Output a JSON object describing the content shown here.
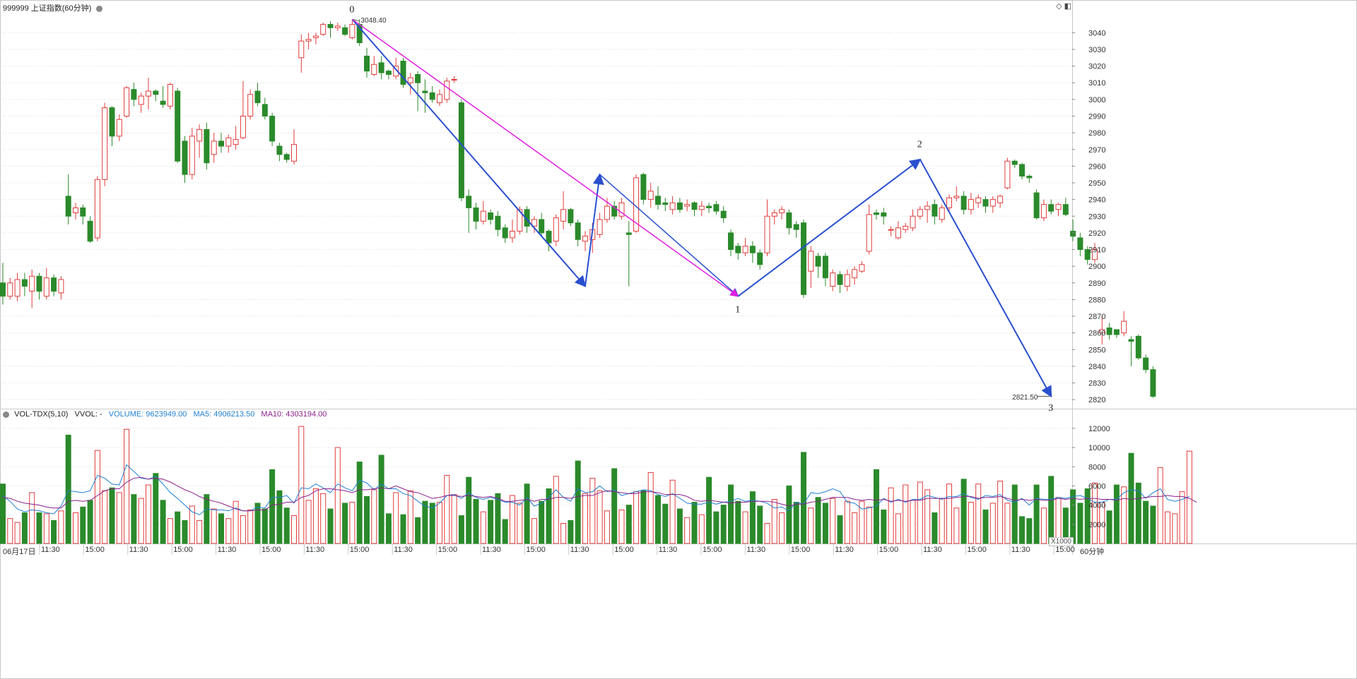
{
  "header": {
    "symbol_title": "999999 上证指数(60分钟)",
    "period_label": "60分钟",
    "volume_unit": "X1000",
    "date_label": "06月17日"
  },
  "volume_legend": {
    "indicator": "VOL-TDX(5,10)",
    "vvol": "VVOL: -",
    "volume": "VOLUME: 9623949.00",
    "ma5": "MA5: 4906213.50",
    "ma10": "MA10: 4303194.00"
  },
  "colors": {
    "up": "#e23b3b",
    "down": "#2a8a2a",
    "wave_arrow": "#2a4fcf",
    "trend_line": "#e020e0",
    "ma5": "#1f7fd0",
    "ma10": "#8a1f8a",
    "grid": "#d8d8d8"
  },
  "chart_data": {
    "type": "candlestick",
    "price_axis": {
      "ticks": [
        2820,
        2830,
        2840,
        2850,
        2860,
        2870,
        2880,
        2890,
        2900,
        2910,
        2920,
        2930,
        2940,
        2950,
        2960,
        2970,
        2980,
        2990,
        3000,
        3010,
        3020,
        3030,
        3040
      ],
      "range": [
        2815,
        3052
      ]
    },
    "volume_axis": {
      "ticks": [
        2000,
        4000,
        6000,
        8000,
        10000,
        12000
      ],
      "range": [
        0,
        12800
      ],
      "unit": "X1000"
    },
    "time_labels": [
      "11:30",
      "15:00",
      "11:30",
      "15:00",
      "11:30",
      "15:00",
      "11:30",
      "15:00",
      "11:30",
      "15:00",
      "11:30",
      "15:00",
      "11:30",
      "15:00",
      "11:30",
      "15:00",
      "11:30",
      "15:00",
      "11:30",
      "15:00",
      "11:30",
      "15:00",
      "11:30",
      "15:00"
    ],
    "annotations": {
      "high_value": "3048.40",
      "low_value": "2821.50",
      "wave_labels": [
        "0",
        "1",
        "2",
        "3"
      ]
    },
    "candles": [
      [
        2890,
        2882,
        2902,
        2877
      ],
      [
        2882,
        2890,
        2893,
        2880
      ],
      [
        2882,
        2892,
        2896,
        2879
      ],
      [
        2892,
        2888,
        2896,
        2882
      ],
      [
        2885,
        2894,
        2898,
        2875
      ],
      [
        2894,
        2885,
        2896,
        2880
      ],
      [
        2882,
        2893,
        2899,
        2880
      ],
      [
        2893,
        2885,
        2895,
        2882
      ],
      [
        2884,
        2892,
        2894,
        2880
      ],
      [
        2942,
        2930,
        2955,
        2925
      ],
      [
        2932,
        2935,
        2938,
        2928
      ],
      [
        2935,
        2930,
        2937,
        2925
      ],
      [
        2927,
        2915,
        2930,
        2914
      ],
      [
        2917,
        2952,
        2954,
        2915
      ],
      [
        2952,
        2995,
        2998,
        2948
      ],
      [
        2995,
        2978,
        2996,
        2972
      ],
      [
        2978,
        2988,
        2991,
        2975
      ],
      [
        2990,
        3007,
        3008,
        2989
      ],
      [
        3006,
        3000,
        3010,
        2996
      ],
      [
        2997,
        3002,
        3004,
        2992
      ],
      [
        3002,
        3005,
        3013,
        2994
      ],
      [
        3005,
        3003,
        3006,
        2999
      ],
      [
        2999,
        2997,
        3008,
        2995
      ],
      [
        2996,
        3009,
        3010,
        2994
      ],
      [
        3005,
        2963,
        3007,
        2962
      ],
      [
        2975,
        2955,
        2978,
        2950
      ],
      [
        2955,
        2978,
        2983,
        2952
      ],
      [
        2975,
        2982,
        2985,
        2965
      ],
      [
        2982,
        2962,
        2986,
        2958
      ],
      [
        2967,
        2975,
        2980,
        2962
      ],
      [
        2975,
        2972,
        2980,
        2968
      ],
      [
        2972,
        2977,
        2979,
        2968
      ],
      [
        2973,
        2976,
        2984,
        2970
      ],
      [
        2977,
        2990,
        3011,
        2976
      ],
      [
        2990,
        3003,
        3006,
        2988
      ],
      [
        3005,
        2998,
        3010,
        2996
      ],
      [
        2997,
        2990,
        3001,
        2988
      ],
      [
        2990,
        2975,
        2992,
        2972
      ],
      [
        2972,
        2967,
        2974,
        2963
      ],
      [
        2967,
        2964,
        2968,
        2962
      ],
      [
        2963,
        2973,
        2982,
        2961
      ],
      [
        3025,
        3035,
        3039,
        3016
      ],
      [
        3035,
        3036,
        3040,
        3030
      ],
      [
        3037,
        3038,
        3040,
        3033
      ],
      [
        3039,
        3045,
        3046,
        3038
      ],
      [
        3045,
        3043,
        3047,
        3037
      ],
      [
        3043,
        3044,
        3046,
        3041
      ],
      [
        3043,
        3039,
        3045,
        3038
      ],
      [
        3037,
        3045,
        3048,
        3036
      ],
      [
        3045,
        3034,
        3048,
        3032
      ],
      [
        3026,
        3017,
        3031,
        3013
      ],
      [
        3015,
        3021,
        3026,
        3014
      ],
      [
        3022,
        3016,
        3026,
        3012
      ],
      [
        3017,
        3015,
        3018,
        3012
      ],
      [
        3014,
        3020,
        3025,
        3012
      ],
      [
        3023,
        3009,
        3025,
        3007
      ],
      [
        3010,
        3013,
        3016,
        3003
      ],
      [
        3015,
        3010,
        3017,
        2993
      ],
      [
        3005,
        3004,
        3012,
        2992
      ],
      [
        3004,
        3000,
        3008,
        2998
      ],
      [
        2998,
        3003,
        3006,
        2996
      ],
      [
        3000,
        3011,
        3013,
        2998
      ],
      [
        3012,
        3012,
        3014,
        3010
      ],
      [
        2998,
        2941,
        3000,
        2939
      ],
      [
        2942,
        2935,
        2946,
        2920
      ],
      [
        2935,
        2927,
        2938,
        2922
      ],
      [
        2927,
        2933,
        2939,
        2925
      ],
      [
        2932,
        2928,
        2934,
        2925
      ],
      [
        2930,
        2922,
        2933,
        2918
      ],
      [
        2923,
        2917,
        2925,
        2914
      ],
      [
        2917,
        2921,
        2928,
        2914
      ],
      [
        2921,
        2934,
        2936,
        2919
      ],
      [
        2934,
        2924,
        2936,
        2920
      ],
      [
        2924,
        2928,
        2930,
        2920
      ],
      [
        2928,
        2920,
        2932,
        2918
      ],
      [
        2921,
        2914,
        2922,
        2909
      ],
      [
        2915,
        2929,
        2931,
        2912
      ],
      [
        2927,
        2934,
        2945,
        2922
      ],
      [
        2934,
        2926,
        2935,
        2924
      ],
      [
        2926,
        2916,
        2928,
        2912
      ],
      [
        2915,
        2918,
        2921,
        2909
      ],
      [
        2916,
        2922,
        2926,
        2908
      ],
      [
        2919,
        2928,
        2932,
        2917
      ],
      [
        2928,
        2936,
        2941,
        2926
      ],
      [
        2936,
        2930,
        2939,
        2928
      ],
      [
        2930,
        2938,
        2941,
        2928
      ],
      [
        2920,
        2919,
        2927,
        2888
      ],
      [
        2921,
        2953,
        2955,
        2920
      ],
      [
        2955,
        2940,
        2956,
        2937
      ],
      [
        2940,
        2945,
        2950,
        2935
      ],
      [
        2942,
        2937,
        2948,
        2934
      ],
      [
        2938,
        2937,
        2941,
        2933
      ],
      [
        2934,
        2938,
        2942,
        2931
      ],
      [
        2938,
        2934,
        2941,
        2932
      ],
      [
        2936,
        2937,
        2940,
        2933
      ],
      [
        2938,
        2934,
        2939,
        2930
      ],
      [
        2934,
        2936,
        2939,
        2930
      ],
      [
        2936,
        2935,
        2938,
        2932
      ],
      [
        2937,
        2933,
        2939,
        2931
      ],
      [
        2933,
        2929,
        2936,
        2926
      ],
      [
        2920,
        2910,
        2922,
        2906
      ],
      [
        2912,
        2908,
        2914,
        2904
      ],
      [
        2908,
        2912,
        2917,
        2906
      ],
      [
        2912,
        2908,
        2915,
        2902
      ],
      [
        2908,
        2901,
        2910,
        2898
      ],
      [
        2908,
        2930,
        2940,
        2906
      ],
      [
        2930,
        2932,
        2934,
        2925
      ],
      [
        2932,
        2934,
        2936,
        2928
      ],
      [
        2932,
        2923,
        2934,
        2919
      ],
      [
        2925,
        2922,
        2927,
        2917
      ],
      [
        2926,
        2883,
        2928,
        2881
      ],
      [
        2897,
        2909,
        2912,
        2887
      ],
      [
        2906,
        2900,
        2908,
        2893
      ],
      [
        2906,
        2893,
        2908,
        2888
      ],
      [
        2888,
        2896,
        2898,
        2885
      ],
      [
        2895,
        2889,
        2897,
        2884
      ],
      [
        2888,
        2895,
        2898,
        2885
      ],
      [
        2893,
        2898,
        2900,
        2889
      ],
      [
        2897,
        2901,
        2903,
        2896
      ],
      [
        2909,
        2931,
        2937,
        2907
      ],
      [
        2932,
        2931,
        2934,
        2928
      ],
      [
        2932,
        2930,
        2935,
        2925
      ],
      [
        2922,
        2922,
        2924,
        2918
      ],
      [
        2917,
        2923,
        2927,
        2916
      ],
      [
        2922,
        2924,
        2926,
        2920
      ],
      [
        2923,
        2930,
        2934,
        2921
      ],
      [
        2930,
        2934,
        2936,
        2928
      ],
      [
        2934,
        2936,
        2939,
        2926
      ],
      [
        2937,
        2930,
        2940,
        2925
      ],
      [
        2928,
        2935,
        2937,
        2926
      ],
      [
        2935,
        2941,
        2943,
        2932
      ],
      [
        2941,
        2942,
        2948,
        2939
      ],
      [
        2942,
        2934,
        2945,
        2931
      ],
      [
        2934,
        2940,
        2944,
        2931
      ],
      [
        2938,
        2941,
        2943,
        2935
      ],
      [
        2940,
        2936,
        2942,
        2932
      ],
      [
        2936,
        2940,
        2942,
        2932
      ],
      [
        2938,
        2942,
        2943,
        2935
      ],
      [
        2947,
        2963,
        2965,
        2946
      ],
      [
        2963,
        2961,
        2964,
        2959
      ],
      [
        2961,
        2954,
        2962,
        2952
      ],
      [
        2954,
        2953,
        2955,
        2950
      ],
      [
        2944,
        2929,
        2946,
        2928
      ],
      [
        2929,
        2937,
        2940,
        2927
      ],
      [
        2937,
        2933,
        2940,
        2931
      ],
      [
        2934,
        2937,
        2938,
        2930
      ],
      [
        2937,
        2931,
        2941,
        2930
      ],
      [
        2921,
        2918,
        2928,
        2915
      ],
      [
        2917,
        2910,
        2920,
        2906
      ],
      [
        2910,
        2904,
        2912,
        2901
      ],
      [
        2904,
        2910,
        2914,
        2902
      ],
      [
        2860,
        2862,
        2870,
        2853
      ],
      [
        2863,
        2859,
        2866,
        2856
      ],
      [
        2862,
        2859,
        2862,
        2857
      ],
      [
        2860,
        2867,
        2873,
        2858
      ],
      [
        2856,
        2855,
        2858,
        2840
      ],
      [
        2858,
        2845,
        2859,
        2844
      ],
      [
        2845,
        2838,
        2847,
        2836
      ],
      [
        2838,
        2822,
        2840,
        2821
      ]
    ],
    "volumes": [
      6200,
      2600,
      2200,
      3200,
      5300,
      3200,
      3100,
      2400,
      3400,
      11300,
      3200,
      3800,
      4500,
      9700,
      5500,
      5800,
      5300,
      11900,
      5100,
      4700,
      6100,
      7300,
      4500,
      2600,
      3300,
      2400,
      3900,
      2400,
      5100,
      3600,
      3100,
      2600,
      4400,
      2900,
      3500,
      4200,
      3600,
      7700,
      5500,
      3700,
      2900,
      12200,
      4500,
      5700,
      5200,
      3600,
      10000,
      4200,
      4300,
      8500,
      4900,
      5600,
      9200,
      3100,
      5300,
      3000,
      5500,
      2700,
      4400,
      4200,
      4300,
      7100,
      5100,
      2900,
      6900,
      4600,
      3300,
      4500,
      5200,
      2500,
      5000,
      4200,
      6200,
      2600,
      4400,
      5700,
      7000,
      2100,
      2400,
      8600,
      5200,
      6800,
      5500,
      3400,
      7800,
      3500,
      4000,
      5400,
      5500,
      7400,
      5000,
      4100,
      6600,
      3600,
      2700,
      4300,
      3000,
      6900,
      3300,
      4000,
      6100,
      4400,
      3300,
      5400,
      3900,
      2100,
      4600,
      3200,
      6000,
      4300,
      9500,
      3700,
      4800,
      4200,
      4700,
      2900,
      4400,
      3200,
      4400,
      3800,
      7700,
      3500,
      5800,
      3100,
      6100,
      4500,
      6400,
      5600,
      3200,
      4700,
      6200,
      3700,
      6700,
      4300,
      6200,
      3500,
      4200,
      6500,
      4200,
      6100,
      2800,
      2600,
      6100,
      3700,
      7000,
      4800,
      3700,
      5600,
      4200,
      5700,
      6300,
      4300,
      3400,
      6100,
      5900,
      9400,
      6300,
      4400,
      3900,
      7900,
      3300,
      3100,
      5400,
      9623
    ],
    "ma5": [
      5000,
      4400,
      3600,
      3300,
      3500,
      3400,
      3200,
      3100,
      3900,
      5500,
      5400,
      5300,
      5500,
      7100,
      6800,
      6200,
      6100,
      8200,
      7500,
      6800,
      6700,
      7000,
      6200,
      5300,
      4700,
      4000,
      3300,
      3000,
      3600,
      3500,
      3500,
      3400,
      3700,
      3400,
      3400,
      3800,
      3700,
      4800,
      4800,
      5000,
      4200,
      5800,
      5700,
      6200,
      5800,
      5300,
      6200,
      5800,
      5500,
      6600,
      6300,
      5600,
      6200,
      5700,
      5700,
      5200,
      5000,
      4400,
      3900,
      3700,
      4200,
      5000,
      5100,
      4700,
      5300,
      4800,
      4600,
      4800,
      4600,
      4300,
      4300,
      4000,
      4800,
      3900,
      4200,
      4800,
      5600,
      4800,
      4400,
      5700,
      5300,
      5400,
      6000,
      5400,
      5600,
      5000,
      5200,
      5400,
      5600,
      5500,
      5100,
      4900,
      5200,
      4700,
      4200,
      4100,
      4100,
      4300,
      4100,
      4300,
      4400,
      4700,
      4400,
      4500,
      4400,
      4200,
      3700,
      3800,
      3400,
      4300,
      4100,
      5300,
      5200,
      5400,
      5700,
      5400,
      4300,
      4200,
      3600,
      3700,
      3900,
      4700,
      4300,
      4600,
      4300,
      4600,
      4600,
      5000,
      4800,
      4600,
      4900,
      4900,
      5200,
      4800,
      4600,
      5000,
      4900,
      5100,
      4500,
      4300,
      4700,
      4000,
      4700,
      4600,
      4600,
      4800,
      4700,
      4900,
      5000,
      4700,
      4300,
      4300,
      4600,
      4600,
      5300,
      5600,
      5500,
      4700,
      5300,
      5700,
      4600,
      4400,
      4600,
      4906
    ],
    "ma10": [
      4800,
      4700,
      4400,
      4200,
      4100,
      4000,
      3800,
      3700,
      3700,
      4400,
      4500,
      4400,
      4500,
      5000,
      5500,
      5700,
      5700,
      6400,
      6800,
      6900,
      6700,
      6800,
      6700,
      6400,
      6000,
      5600,
      5300,
      4900,
      4600,
      4400,
      4200,
      3900,
      3600,
      3400,
      3400,
      3500,
      3500,
      4000,
      4100,
      4300,
      4300,
      4800,
      5000,
      5500,
      5700,
      5700,
      5600,
      5500,
      5300,
      5600,
      5600,
      5700,
      5800,
      5700,
      6000,
      5700,
      5400,
      5300,
      5000,
      4700,
      4800,
      5000,
      5000,
      4900,
      5000,
      4900,
      4800,
      4900,
      4700,
      4400,
      4400,
      4500,
      4600,
      4400,
      4600,
      4600,
      4800,
      4800,
      4700,
      4900,
      5000,
      5000,
      5300,
      5500,
      5400,
      5300,
      5200,
      5200,
      5400,
      5400,
      5300,
      5100,
      5100,
      5100,
      4900,
      4500,
      4400,
      4500,
      4400,
      4300,
      4200,
      4300,
      4300,
      4400,
      4400,
      4400,
      4300,
      4100,
      3900,
      4100,
      4100,
      4300,
      4400,
      4600,
      4800,
      4800,
      4800,
      4600,
      4500,
      4600,
      4500,
      4600,
      4400,
      4500,
      4400,
      4500,
      4500,
      4700,
      4700,
      4700,
      4700,
      4800,
      4900,
      4900,
      4700,
      4800,
      4800,
      4900,
      4700,
      4500,
      4600,
      4500,
      4600,
      4500,
      4500,
      4700,
      4600,
      4700,
      4600,
      4700,
      4700,
      4600,
      4600,
      4500,
      4700,
      4600,
      4700,
      4800,
      4900,
      4900,
      5000,
      4900,
      4900,
      4700,
      4303
    ]
  }
}
